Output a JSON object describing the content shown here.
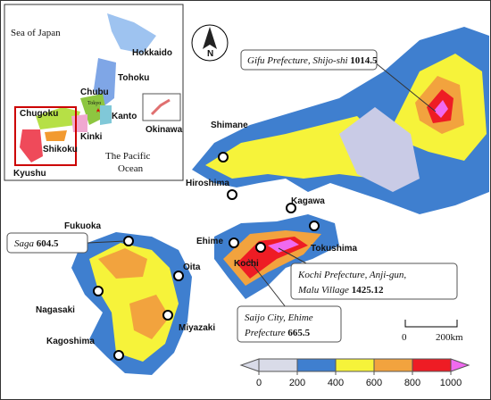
{
  "compass": "N",
  "inset": {
    "labels": [
      "Sea of Japan",
      "Hokkaido",
      "Tohoku",
      "Chubu",
      "Tokyo",
      "Kanto",
      "Chugoku",
      "Kinki",
      "Shikoku",
      "Kyushu",
      "The Pacific",
      "Ocean",
      "Okinawa"
    ]
  },
  "places": [
    "Shimane",
    "Hiroshima",
    "Kagawa",
    "Tokushima",
    "Ehime",
    "Kochi",
    "Fukuoka",
    "Oita",
    "Nagasaki",
    "Miyazaki",
    "Kagoshima"
  ],
  "callouts": [
    {
      "lines": [
        "Gifu Prefecture, Shijo-shi"
      ],
      "value": 1014.5
    },
    {
      "lines": [
        "Saga"
      ],
      "value": 604.5
    },
    {
      "lines": [
        "Kochi Prefecture, Anji-gun,",
        "Malu Village"
      ],
      "value": 1425.12
    },
    {
      "lines": [
        "Saijo City, Ehime",
        "Prefecture"
      ],
      "value": 665.5
    }
  ],
  "scale": {
    "labels": [
      "0",
      "200km"
    ]
  },
  "legend": {
    "ticks": [
      0,
      200,
      400,
      600,
      800,
      1000
    ],
    "colors": [
      "#d9dbe8",
      "#3f7fcf",
      "#f6f33a",
      "#f2a33e",
      "#ee1c24",
      "#f06af0"
    ]
  }
}
